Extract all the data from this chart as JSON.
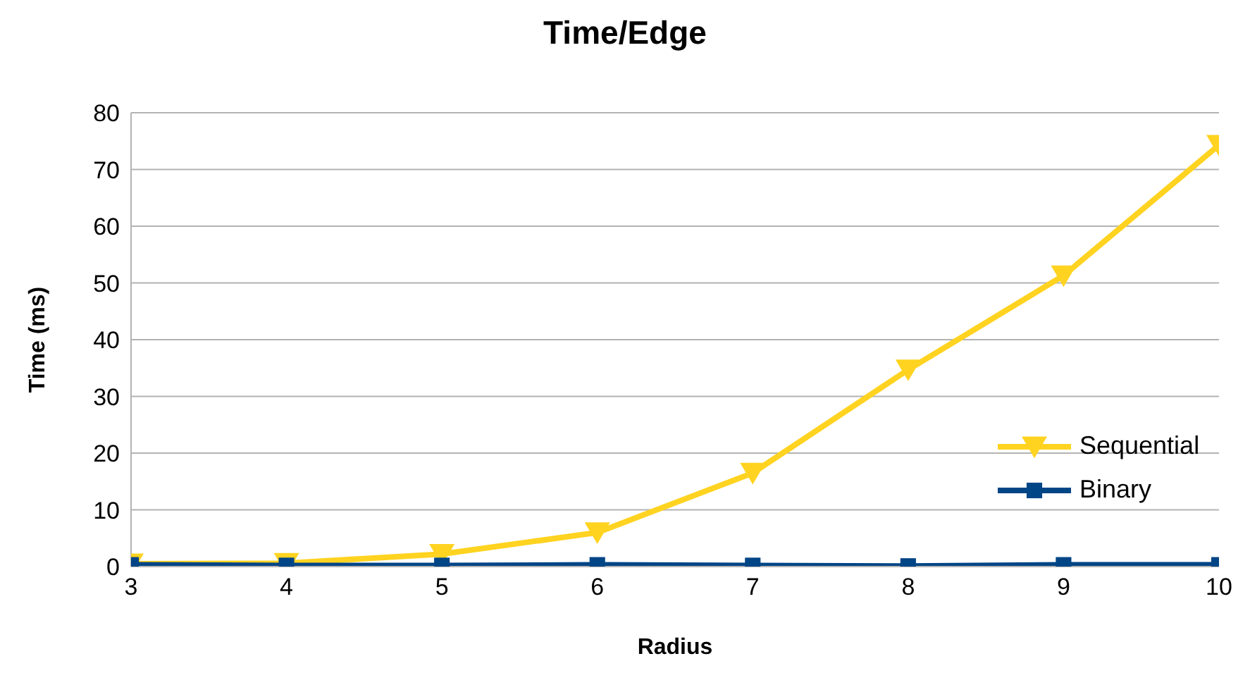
{
  "chart_data": {
    "type": "line",
    "title": "Time/Edge",
    "xlabel": "Radius",
    "ylabel": "Time (ms)",
    "x": [
      3,
      4,
      5,
      6,
      7,
      8,
      9,
      10
    ],
    "series": [
      {
        "name": "Sequential",
        "color": "#ffd320",
        "marker": "triangle",
        "values": [
          0.5,
          0.6,
          2.2,
          6,
          16.5,
          34.7,
          51.3,
          74.3
        ]
      },
      {
        "name": "Binary",
        "color": "#004586",
        "marker": "square",
        "values": [
          0.3,
          0.2,
          0.2,
          0.3,
          0.2,
          0.1,
          0.3,
          0.3
        ]
      }
    ],
    "xlim": [
      3,
      10
    ],
    "xticks": [
      3,
      4,
      5,
      6,
      7,
      8,
      9,
      10
    ],
    "ylim": [
      0,
      80
    ],
    "yticks": [
      0,
      10,
      20,
      30,
      40,
      50,
      60,
      70,
      80
    ],
    "grid": "y",
    "legend": "right",
    "line_style": "solid"
  }
}
